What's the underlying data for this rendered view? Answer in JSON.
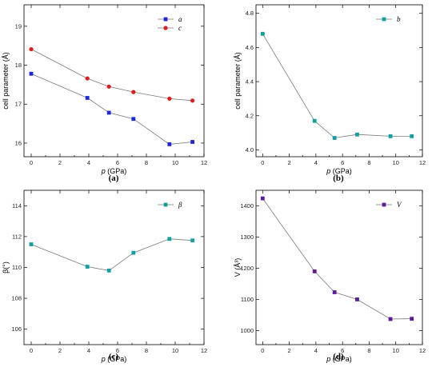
{
  "chart_data": [
    {
      "id": "a",
      "type": "line",
      "panel_label": "(a)",
      "xlabel_var": "p",
      "xlabel_unit": " (GPa)",
      "ylabel": "cell parameter (Å)",
      "xlim": [
        -0.5,
        12
      ],
      "ylim": [
        15.65,
        19.55
      ],
      "xticks": [
        0,
        2,
        4,
        6,
        8,
        10,
        12
      ],
      "yticks": [
        16,
        17,
        18,
        19
      ],
      "legend_position": "top-right",
      "series": [
        {
          "name": "a",
          "marker": "square",
          "color": "#1f28d8",
          "x": [
            0,
            3.9,
            5.4,
            7.1,
            9.6,
            11.2
          ],
          "y": [
            17.78,
            17.16,
            16.78,
            16.62,
            15.97,
            16.03
          ]
        },
        {
          "name": "c",
          "marker": "circle",
          "color": "#e01b1b",
          "x": [
            0,
            3.9,
            5.4,
            7.1,
            9.6,
            11.2
          ],
          "y": [
            18.41,
            17.66,
            17.45,
            17.31,
            17.14,
            17.09
          ]
        }
      ]
    },
    {
      "id": "b",
      "type": "line",
      "panel_label": "(b)",
      "xlabel_var": "p",
      "xlabel_unit": " (GPa)",
      "ylabel": "cell parameter (Å)",
      "xlim": [
        -0.5,
        12
      ],
      "ylim": [
        3.96,
        4.85
      ],
      "xticks": [
        0,
        2,
        4,
        6,
        8,
        10,
        12
      ],
      "yticks": [
        "4.0",
        "4.2",
        "4.4",
        "4.6",
        "4.8"
      ],
      "legend_position": "top-right",
      "series": [
        {
          "name": "b",
          "marker": "square",
          "color": "#139f9f",
          "x": [
            0,
            3.9,
            5.4,
            7.1,
            9.6,
            11.2
          ],
          "y": [
            4.68,
            4.17,
            4.07,
            4.09,
            4.08,
            4.08
          ]
        }
      ]
    },
    {
      "id": "c",
      "type": "line",
      "panel_label": "(c)",
      "xlabel_var": "p",
      "xlabel_unit": " (GPa)",
      "ylabel": "β(°)",
      "xlim": [
        -0.5,
        12
      ],
      "ylim": [
        105,
        115
      ],
      "xticks": [
        0,
        2,
        4,
        6,
        8,
        10,
        12
      ],
      "yticks": [
        106,
        108,
        110,
        112,
        114
      ],
      "legend_position": "top-right",
      "series": [
        {
          "name": "β",
          "marker": "square",
          "color": "#139f9f",
          "x": [
            0,
            3.9,
            5.4,
            7.1,
            9.6,
            11.2
          ],
          "y": [
            111.5,
            110.05,
            109.8,
            110.95,
            111.85,
            111.75
          ]
        }
      ]
    },
    {
      "id": "d",
      "type": "line",
      "panel_label": "(d)",
      "xlabel_var": "p",
      "xlabel_unit": " (GPa)",
      "ylabel": "V (Å³)",
      "xlim": [
        -0.5,
        12
      ],
      "ylim": [
        955,
        1450
      ],
      "xticks": [
        0,
        2,
        4,
        6,
        8,
        10,
        12
      ],
      "yticks": [
        1000,
        1100,
        1200,
        1300,
        1400
      ],
      "legend_position": "top-right",
      "series": [
        {
          "name": "V",
          "marker": "square",
          "color": "#5b1a9a",
          "x": [
            0,
            3.9,
            5.4,
            7.1,
            9.6,
            11.2
          ],
          "y": [
            1424,
            1190,
            1123,
            1100,
            1037,
            1038
          ]
        }
      ]
    }
  ]
}
